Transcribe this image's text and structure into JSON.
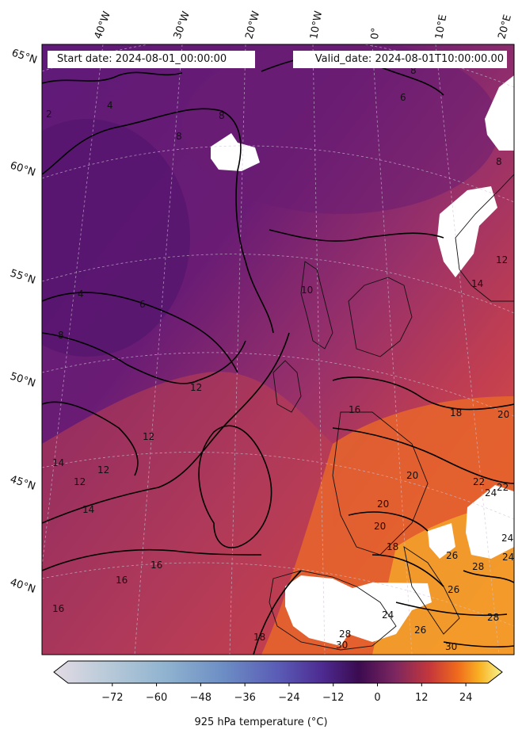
{
  "header": {
    "start_date": "Start date: 2024-08-01_00:00:00",
    "valid_date": "Valid_date: 2024-08-01T10:00:00.00"
  },
  "graticule": {
    "longitudes": [
      "40°W",
      "30°W",
      "20°W",
      "10°W",
      "0°",
      "10°E",
      "20°E"
    ],
    "latitudes": [
      "65°N",
      "60°N",
      "55°N",
      "50°N",
      "45°N",
      "40°N"
    ]
  },
  "contour_labels": [
    "2",
    "4",
    "4",
    "6",
    "6",
    "8",
    "8",
    "8",
    "8",
    "8",
    "10",
    "12",
    "12",
    "12",
    "12",
    "12",
    "14",
    "14",
    "14",
    "16",
    "16",
    "16",
    "16",
    "18",
    "18",
    "18",
    "20",
    "20",
    "20",
    "20",
    "22",
    "22",
    "24",
    "24",
    "24",
    "24",
    "26",
    "26",
    "26",
    "28",
    "28",
    "28",
    "30",
    "30"
  ],
  "colorbar": {
    "label": "925 hPa temperature ($^\\circ$C)",
    "label_display": "925 hPa temperature (°C)",
    "ticks": [
      "−72",
      "−60",
      "−48",
      "−36",
      "−24",
      "−12",
      "0",
      "12",
      "24"
    ],
    "tick_values": [
      -72,
      -60,
      -48,
      -36,
      -24,
      -12,
      0,
      12,
      24
    ],
    "range": [
      -84,
      30
    ],
    "colormap": "inferno (reversed-light at cold end)",
    "colors": [
      "#e3dbe4",
      "#9ebfd0",
      "#6e9bc7",
      "#5a63b8",
      "#4b2a8f",
      "#3c0a4e",
      "#7a2560",
      "#c6383a",
      "#ef6a1c",
      "#f9b224",
      "#f6f58f"
    ]
  },
  "map": {
    "field": "925 hPa temperature",
    "units": "°C",
    "colors": {
      "cold_ocean": "#5a1676",
      "mid": "#8a2a66",
      "warm": "#c7424d",
      "hot": "#e86a2a",
      "hottest": "#f6a82a",
      "missing": "#ffffff"
    }
  }
}
